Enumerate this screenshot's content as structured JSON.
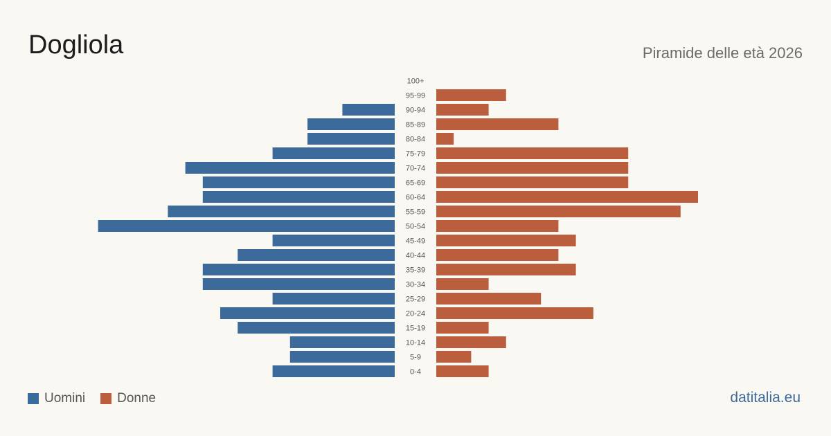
{
  "header": {
    "title": "Dogliola",
    "subtitle": "Piramide delle età 2026"
  },
  "legend": {
    "men_label": "Uomini",
    "women_label": "Donne"
  },
  "brand": "datitalia.eu",
  "colors": {
    "men": "#3c6a9b",
    "women": "#bb5e3d",
    "brand": "#3c6a9b"
  },
  "chart_data": {
    "type": "bar",
    "orientation": "horizontal-pyramid",
    "categories": [
      "100+",
      "95-99",
      "90-94",
      "85-89",
      "80-84",
      "75-79",
      "70-74",
      "65-69",
      "60-64",
      "55-59",
      "50-54",
      "45-49",
      "40-44",
      "35-39",
      "30-34",
      "25-29",
      "20-24",
      "15-19",
      "10-14",
      "5-9",
      "0-4"
    ],
    "series": [
      {
        "name": "Uomini",
        "values": [
          0,
          0,
          3,
          5,
          5,
          7,
          12,
          11,
          11,
          13,
          17,
          7,
          9,
          11,
          11,
          7,
          10,
          9,
          6,
          6,
          7
        ]
      },
      {
        "name": "Donne",
        "values": [
          0,
          4,
          3,
          7,
          1,
          11,
          11,
          11,
          15,
          14,
          7,
          8,
          7,
          8,
          3,
          6,
          9,
          3,
          4,
          2,
          3
        ]
      }
    ],
    "grid": false,
    "legend_position": "bottom-left"
  }
}
